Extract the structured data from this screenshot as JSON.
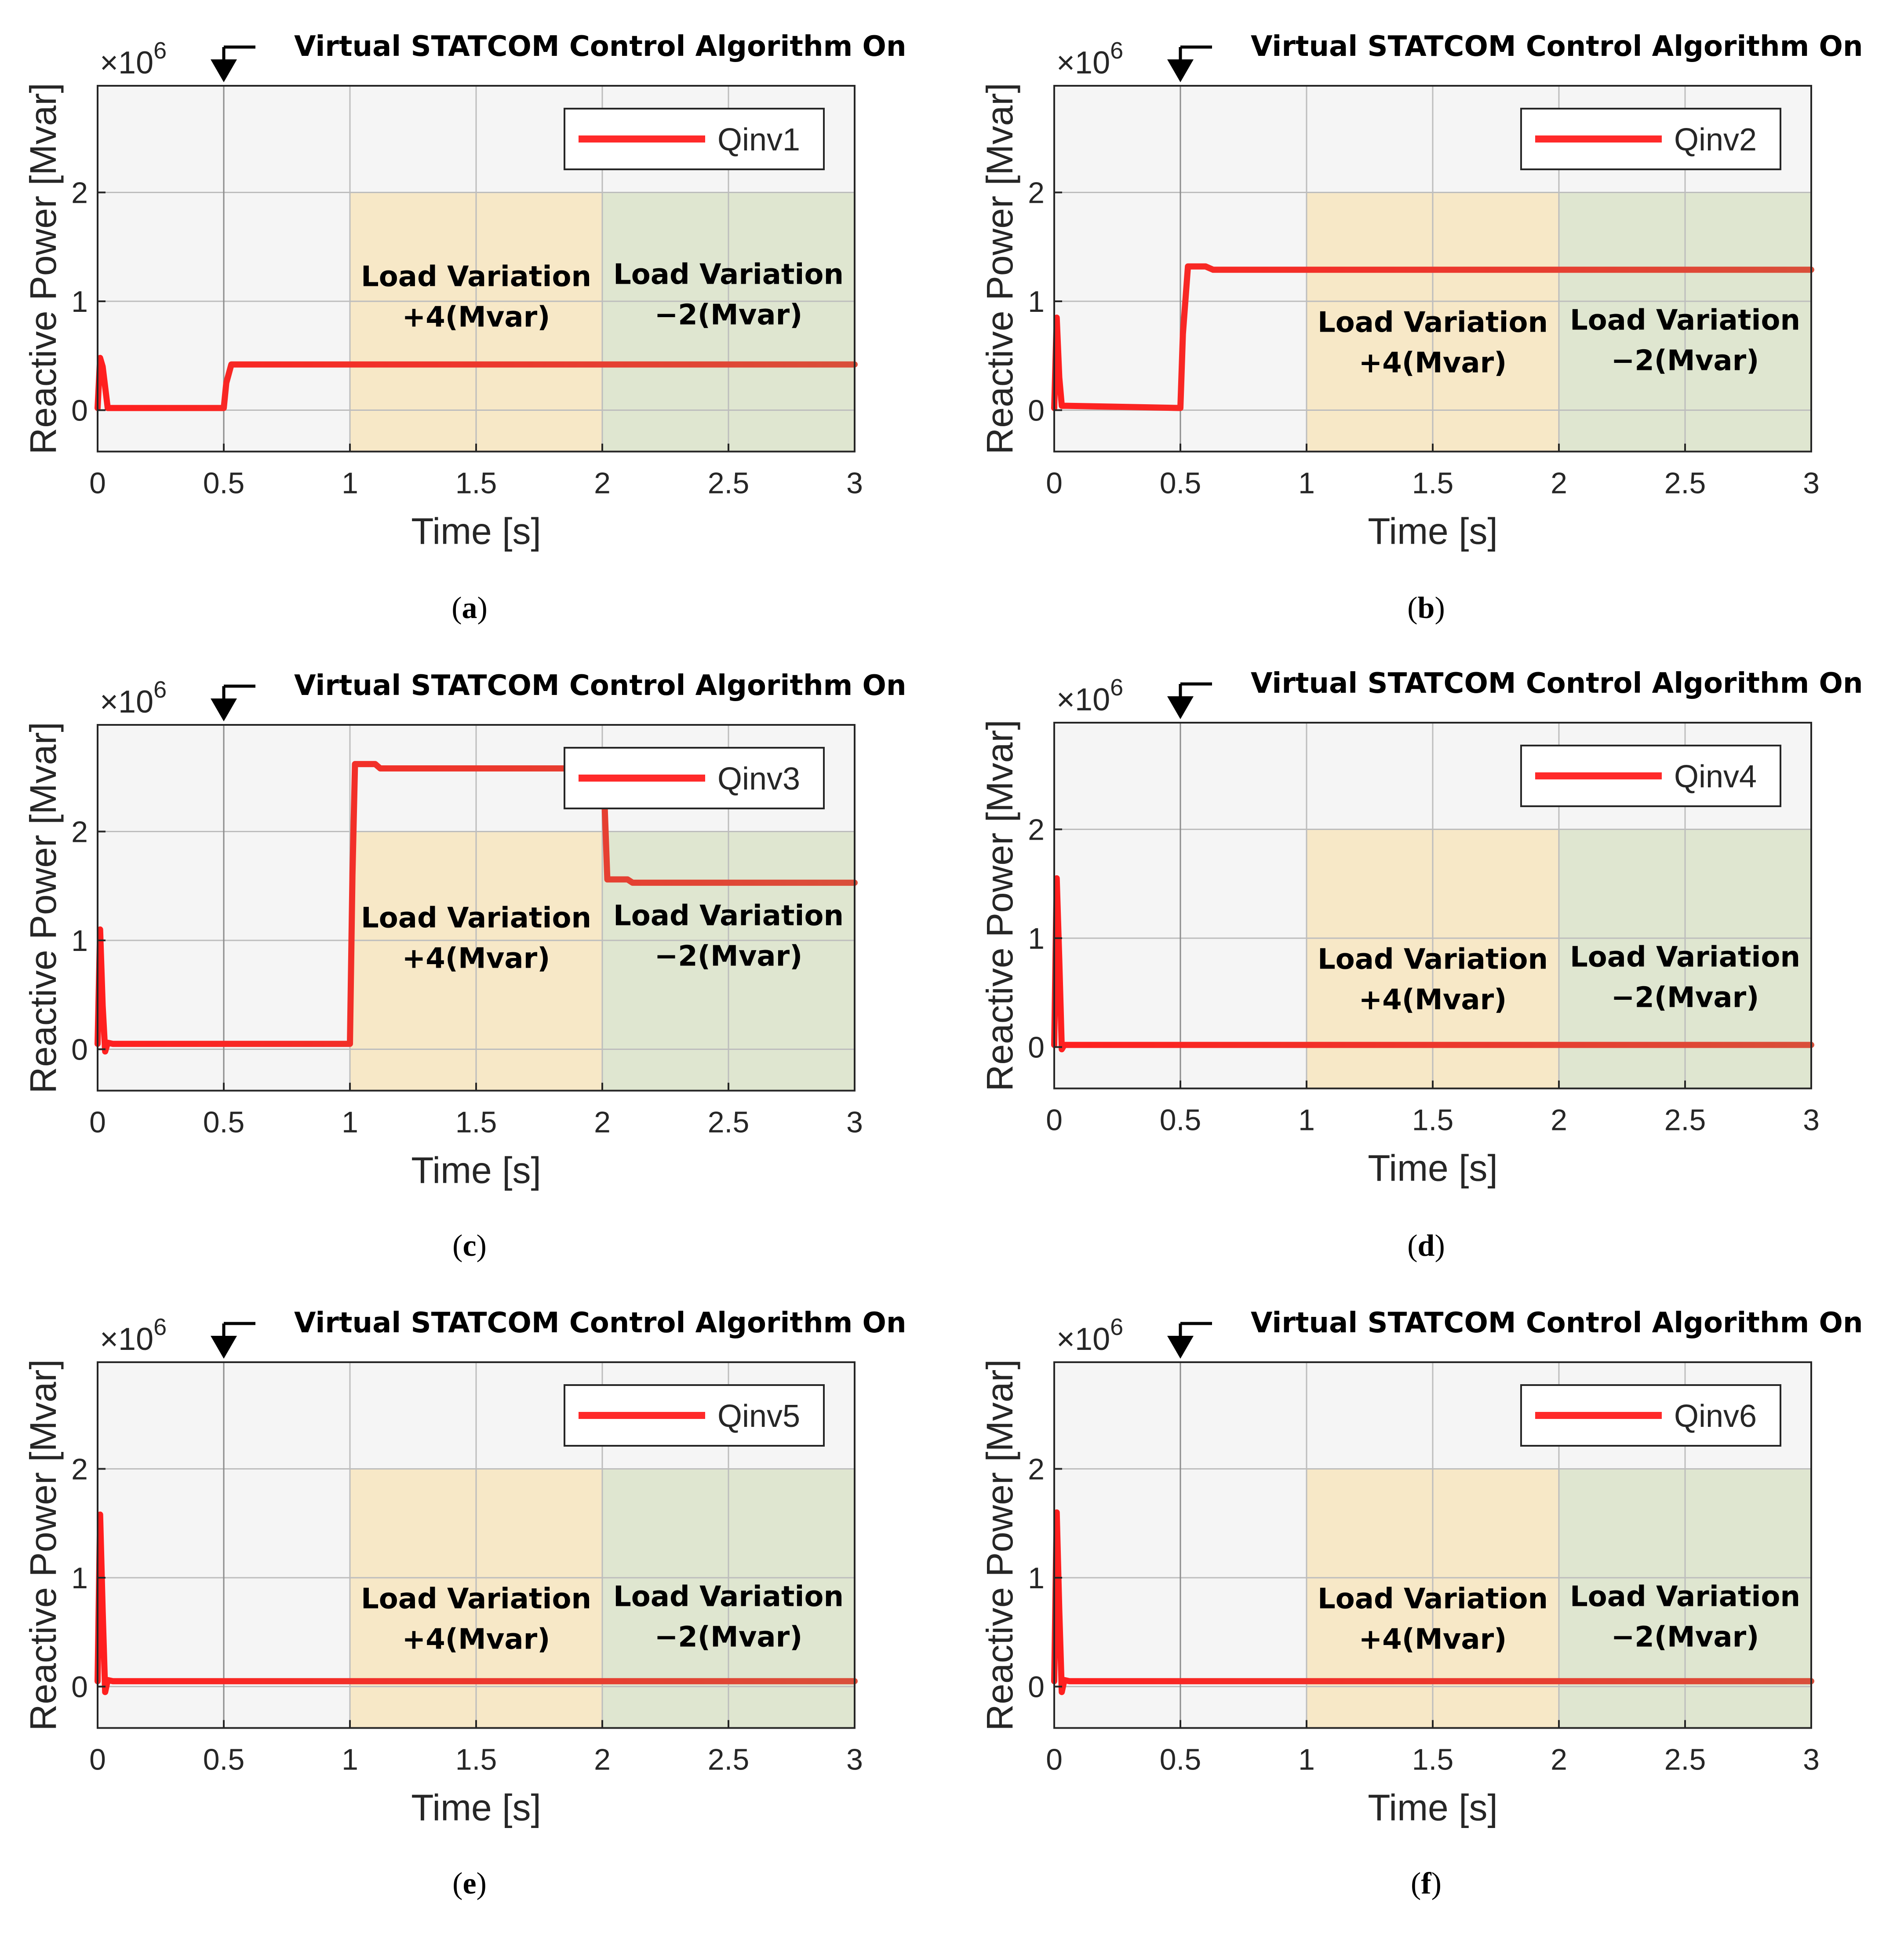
{
  "chart_data": [
    {
      "type": "line",
      "caption_letter": "a",
      "title": "Virtual STATCOM Control Algorithm On",
      "xlabel": "Time [s]",
      "ylabel": "Reactive Power [Mvar]",
      "xlim": [
        0,
        3
      ],
      "ylim": [
        -0.38,
        2.98
      ],
      "xticks": [
        "0",
        "0.5",
        "1",
        "1.5",
        "2",
        "2.5",
        "3"
      ],
      "yticks": [
        "0",
        "1",
        "2"
      ],
      "exponent_label": "×10",
      "exponent_power": "6",
      "series": [
        {
          "name": "Qinv1",
          "color": "#ff2a2a",
          "x": [
            0,
            0.01,
            0.02,
            0.04,
            0.08,
            0.5,
            0.51,
            0.53,
            0.6,
            3
          ],
          "y": [
            0.02,
            0.48,
            0.4,
            0.02,
            0.02,
            0.02,
            0.25,
            0.42,
            0.42,
            0.42
          ]
        }
      ],
      "regions": [
        {
          "label_lines": [
            "Load Variation",
            "+4(Mvar)"
          ],
          "x0": 1,
          "x1": 2,
          "color": "#f7e7c4"
        },
        {
          "label_lines": [
            "Load Variation",
            "−2(Mvar)"
          ],
          "x0": 2,
          "x1": 3,
          "color": "#dde5cd"
        }
      ],
      "marker_x": 0.5,
      "legend_position": "top-right"
    },
    {
      "type": "line",
      "caption_letter": "b",
      "title": "Virtual STATCOM Control Algorithm On",
      "xlabel": "Time [s]",
      "ylabel": "Reactive Power [Mvar]",
      "xlim": [
        0,
        3
      ],
      "ylim": [
        -0.38,
        2.98
      ],
      "xticks": [
        "0",
        "0.5",
        "1",
        "1.5",
        "2",
        "2.5",
        "3"
      ],
      "yticks": [
        "0",
        "1",
        "2"
      ],
      "exponent_label": "×10",
      "exponent_power": "6",
      "series": [
        {
          "name": "Qinv2",
          "color": "#ff2a2a",
          "x": [
            0,
            0.01,
            0.02,
            0.03,
            0.05,
            0.5,
            0.51,
            0.53,
            0.6,
            0.63,
            3
          ],
          "y": [
            0.02,
            0.85,
            0.3,
            0.04,
            0.04,
            0.02,
            0.7,
            1.32,
            1.32,
            1.29,
            1.29
          ]
        }
      ],
      "regions": [
        {
          "label_lines": [
            "Load Variation",
            "+4(Mvar)"
          ],
          "x0": 1,
          "x1": 2,
          "color": "#f7e7c4"
        },
        {
          "label_lines": [
            "Load Variation",
            "−2(Mvar)"
          ],
          "x0": 2,
          "x1": 3,
          "color": "#dde5cd"
        }
      ],
      "marker_x": 0.5,
      "legend_position": "top-right"
    },
    {
      "type": "line",
      "caption_letter": "c",
      "title": "Virtual STATCOM Control Algorithm On",
      "xlabel": "Time [s]",
      "ylabel": "Reactive Power [Mvar]",
      "xlim": [
        0,
        3
      ],
      "ylim": [
        -0.38,
        2.98
      ],
      "xticks": [
        "0",
        "0.5",
        "1",
        "1.5",
        "2",
        "2.5",
        "3"
      ],
      "yticks": [
        "0",
        "1",
        "2"
      ],
      "exponent_label": "×10",
      "exponent_power": "6",
      "series": [
        {
          "name": "Qinv3",
          "color": "#ff2a2a",
          "x": [
            0,
            0.01,
            0.02,
            0.03,
            0.04,
            0.06,
            1.0,
            1.01,
            1.02,
            1.1,
            1.12,
            2.0,
            2.01,
            2.02,
            2.1,
            2.12,
            3
          ],
          "y": [
            0.05,
            1.1,
            0.4,
            -0.02,
            0.06,
            0.05,
            0.05,
            1.6,
            2.62,
            2.62,
            2.58,
            2.58,
            2.2,
            1.56,
            1.56,
            1.53,
            1.53
          ]
        }
      ],
      "regions": [
        {
          "label_lines": [
            "Load Variation",
            "+4(Mvar)"
          ],
          "x0": 1,
          "x1": 2,
          "color": "#f7e7c4"
        },
        {
          "label_lines": [
            "Load Variation",
            "−2(Mvar)"
          ],
          "x0": 2,
          "x1": 3,
          "color": "#dde5cd"
        }
      ],
      "marker_x": 0.5,
      "legend_position": "top-right"
    },
    {
      "type": "line",
      "caption_letter": "d",
      "title": "Virtual STATCOM Control Algorithm On",
      "xlabel": "Time [s]",
      "ylabel": "Reactive Power [Mvar]",
      "xlim": [
        0,
        3
      ],
      "ylim": [
        -0.38,
        2.98
      ],
      "xticks": [
        "0",
        "0.5",
        "1",
        "1.5",
        "2",
        "2.5",
        "3"
      ],
      "yticks": [
        "0",
        "1",
        "2"
      ],
      "exponent_label": "×10",
      "exponent_power": "6",
      "series": [
        {
          "name": "Qinv4",
          "color": "#ff2a2a",
          "x": [
            0,
            0.01,
            0.02,
            0.03,
            0.04,
            0.06,
            3
          ],
          "y": [
            0.02,
            1.55,
            0.8,
            -0.02,
            0.02,
            0.02,
            0.02
          ]
        }
      ],
      "regions": [
        {
          "label_lines": [
            "Load Variation",
            "+4(Mvar)"
          ],
          "x0": 1,
          "x1": 2,
          "color": "#f7e7c4"
        },
        {
          "label_lines": [
            "Load Variation",
            "−2(Mvar)"
          ],
          "x0": 2,
          "x1": 3,
          "color": "#dde5cd"
        }
      ],
      "marker_x": 0.5,
      "legend_position": "top-right"
    },
    {
      "type": "line",
      "caption_letter": "e",
      "title": "Virtual STATCOM Control Algorithm On",
      "xlabel": "Time [s]",
      "ylabel": "Reactive Power [Mvar]",
      "xlim": [
        0,
        3
      ],
      "ylim": [
        -0.38,
        2.98
      ],
      "xticks": [
        "0",
        "0.5",
        "1",
        "1.5",
        "2",
        "2.5",
        "3"
      ],
      "yticks": [
        "0",
        "1",
        "2"
      ],
      "exponent_label": "×10",
      "exponent_power": "6",
      "series": [
        {
          "name": "Qinv5",
          "color": "#ff2a2a",
          "x": [
            0,
            0.01,
            0.02,
            0.03,
            0.04,
            0.06,
            3
          ],
          "y": [
            0.05,
            1.58,
            0.7,
            -0.05,
            0.06,
            0.05,
            0.05
          ]
        }
      ],
      "regions": [
        {
          "label_lines": [
            "Load Variation",
            "+4(Mvar)"
          ],
          "x0": 1,
          "x1": 2,
          "color": "#f7e7c4"
        },
        {
          "label_lines": [
            "Load Variation",
            "−2(Mvar)"
          ],
          "x0": 2,
          "x1": 3,
          "color": "#dde5cd"
        }
      ],
      "marker_x": 0.5,
      "legend_position": "top-right"
    },
    {
      "type": "line",
      "caption_letter": "f",
      "title": "Virtual STATCOM Control Algorithm On",
      "xlabel": "Time [s]",
      "ylabel": "Reactive Power [Mvar]",
      "xlim": [
        0,
        3
      ],
      "ylim": [
        -0.38,
        2.98
      ],
      "xticks": [
        "0",
        "0.5",
        "1",
        "1.5",
        "2",
        "2.5",
        "3"
      ],
      "yticks": [
        "0",
        "1",
        "2"
      ],
      "exponent_label": "×10",
      "exponent_power": "6",
      "series": [
        {
          "name": "Qinv6",
          "color": "#ff2a2a",
          "x": [
            0,
            0.01,
            0.02,
            0.03,
            0.04,
            0.06,
            3
          ],
          "y": [
            0.05,
            1.6,
            0.7,
            -0.05,
            0.06,
            0.05,
            0.05
          ]
        }
      ],
      "regions": [
        {
          "label_lines": [
            "Load Variation",
            "+4(Mvar)"
          ],
          "x0": 1,
          "x1": 2,
          "color": "#f7e7c4"
        },
        {
          "label_lines": [
            "Load Variation",
            "−2(Mvar)"
          ],
          "x0": 2,
          "x1": 3,
          "color": "#dde5cd"
        }
      ],
      "marker_x": 0.5,
      "legend_position": "top-right"
    }
  ],
  "colors": {
    "plot_background": "#f5f5f5",
    "grid": "#bdbdbd",
    "series_start": "#ff1f1f",
    "series_end": "#d94f3a"
  }
}
